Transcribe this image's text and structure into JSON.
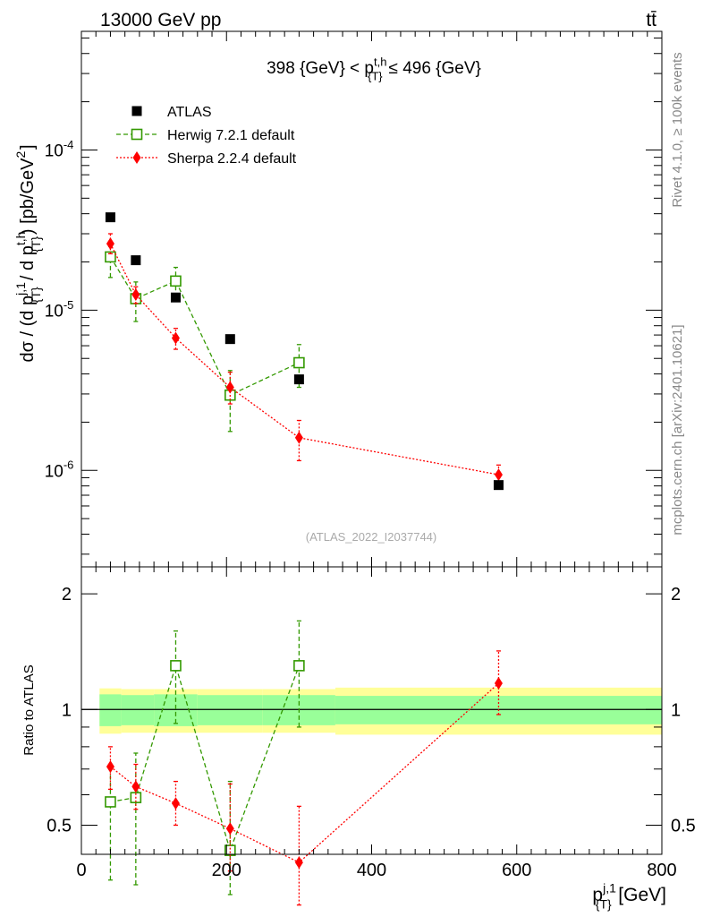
{
  "header": {
    "energy_label": "13000 GeV pp",
    "process_label": "tt̄",
    "rivet_label": "Rivet 4.1.0, ≥ 100k events",
    "mcplots_label": "mcplots.cern.ch [arXiv:2401.10621]",
    "analysis_label": "(ATLAS_2022_I2037744)"
  },
  "chart_data": [
    {
      "type": "scatter",
      "panel": "main",
      "title": "398 {GeV} < p_{T}^{t,h} ≤ 496 {GeV}",
      "ylabel": "dσ / (d p_{T}^{j,1} / d p_{T}^{t,h}) [pb/GeV^2]",
      "yscale": "log",
      "xlim": [
        0,
        800
      ],
      "ylim": [
        2.5e-07,
        0.00055
      ],
      "ytick_labels": [
        "10^-6",
        "10^-5",
        "10^-4"
      ],
      "x": [
        40,
        75,
        130,
        205,
        300,
        575
      ],
      "legend": [
        "ATLAS",
        "Herwig 7.2.1 default",
        "Sherpa 2.2.4 default"
      ],
      "series": [
        {
          "name": "ATLAS",
          "color": "#000000",
          "marker": "filled-square",
          "values": [
            3.8e-05,
            2.05e-05,
            1.2e-05,
            6.6e-06,
            3.7e-06,
            8.1e-07
          ]
        },
        {
          "name": "Herwig 7.2.1 default",
          "color": "#339900",
          "marker": "open-square",
          "line": "dashed",
          "x": [
            40,
            75,
            130,
            205,
            300
          ],
          "values": [
            2.15e-05,
            1.18e-05,
            1.52e-05,
            2.95e-06,
            4.7e-06
          ],
          "err_low": [
            1.6e-05,
            8.5e-06,
            1.2e-05,
            1.75e-06,
            3.3e-06
          ],
          "err_high": [
            2.5e-05,
            1.5e-05,
            1.85e-05,
            4.2e-06,
            6.1e-06
          ]
        },
        {
          "name": "Sherpa 2.2.4 default",
          "color": "#ff0000",
          "marker": "filled-diamond",
          "line": "dotted",
          "values": [
            2.6e-05,
            1.25e-05,
            6.7e-06,
            3.3e-06,
            1.6e-06,
            9.4e-07
          ],
          "err_low": [
            2.25e-05,
            1.1e-05,
            5.7e-06,
            2.6e-06,
            1.15e-06,
            8.4e-07
          ],
          "err_high": [
            3e-05,
            1.4e-05,
            7.7e-06,
            4.1e-06,
            2.05e-06,
            1.08e-06
          ]
        }
      ]
    },
    {
      "type": "scatter",
      "panel": "ratio",
      "ylabel": "Ratio to ATLAS",
      "xlabel": "p_{T}^{j,1} [GeV]",
      "yscale": "log",
      "xlim": [
        0,
        800
      ],
      "ylim": [
        0.42,
        2.35
      ],
      "ytick_labels": [
        "0.5",
        "1",
        "2"
      ],
      "xtick_labels": [
        "0",
        "200",
        "400",
        "600",
        "800"
      ],
      "band_edges": [
        25,
        55,
        100,
        160,
        250,
        350,
        800
      ],
      "band_stat": [
        0.095,
        0.09,
        0.095,
        0.09,
        0.09,
        0.085
      ],
      "band_total": [
        0.135,
        0.13,
        0.13,
        0.13,
        0.13,
        0.14
      ],
      "series": [
        {
          "name": "Herwig 7.2.1 default",
          "color": "#339900",
          "marker": "open-square",
          "line": "dashed",
          "x": [
            40,
            75,
            130,
            205,
            300
          ],
          "values": [
            0.575,
            0.59,
            1.3,
            0.43,
            1.3
          ],
          "err_low": [
            0.36,
            0.35,
            0.92,
            0.33,
            0.9
          ],
          "err_high": [
            0.7,
            0.77,
            1.6,
            0.65,
            1.7
          ]
        },
        {
          "name": "Sherpa 2.2.4 default",
          "color": "#ff0000",
          "marker": "filled-diamond",
          "line": "dotted",
          "x": [
            40,
            75,
            130,
            205,
            300,
            575
          ],
          "values": [
            0.71,
            0.63,
            0.57,
            0.49,
            0.4,
            1.17
          ],
          "err_low": [
            0.62,
            0.55,
            0.5,
            0.38,
            0.31,
            0.97
          ],
          "err_high": [
            0.8,
            0.72,
            0.65,
            0.64,
            0.56,
            1.42
          ]
        }
      ]
    }
  ]
}
